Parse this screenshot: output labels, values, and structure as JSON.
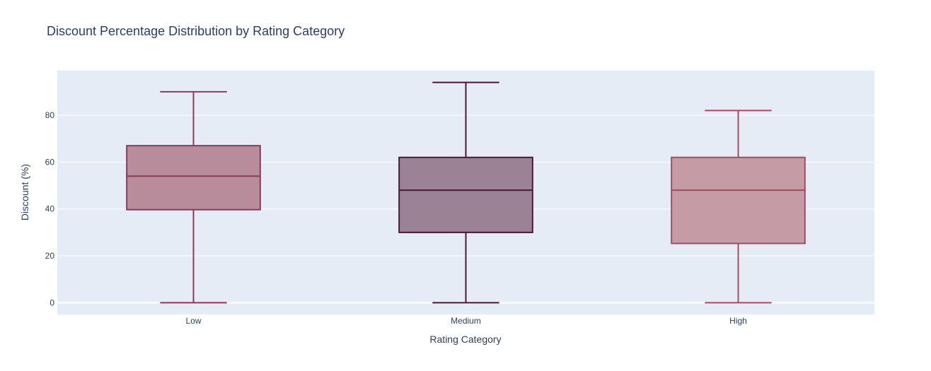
{
  "chart_data": {
    "type": "box",
    "title": "Discount Percentage Distribution by Rating Category",
    "xlabel": "Rating Category",
    "ylabel": "Discount (%)",
    "ylim": [
      -5,
      99
    ],
    "yticks": [
      0,
      20,
      40,
      60,
      80
    ],
    "grid": true,
    "plot_bg": "#e5ecf6",
    "categories": [
      "Low",
      "Medium",
      "High"
    ],
    "boxes": [
      {
        "category": "Low",
        "min": 0,
        "q1": 39.7,
        "median": 54,
        "q3": 67,
        "max": 90,
        "line_color": "#8b3a59",
        "fill_color": "#b88c9b"
      },
      {
        "category": "Medium",
        "min": 0,
        "q1": 30,
        "median": 48,
        "q3": 62,
        "max": 94,
        "line_color": "#4a1839",
        "fill_color": "#9b8295"
      },
      {
        "category": "High",
        "min": 0,
        "q1": 25.3,
        "median": 48,
        "q3": 62,
        "max": 82,
        "line_color": "#a44d5f",
        "fill_color": "#c59ca6"
      }
    ]
  }
}
